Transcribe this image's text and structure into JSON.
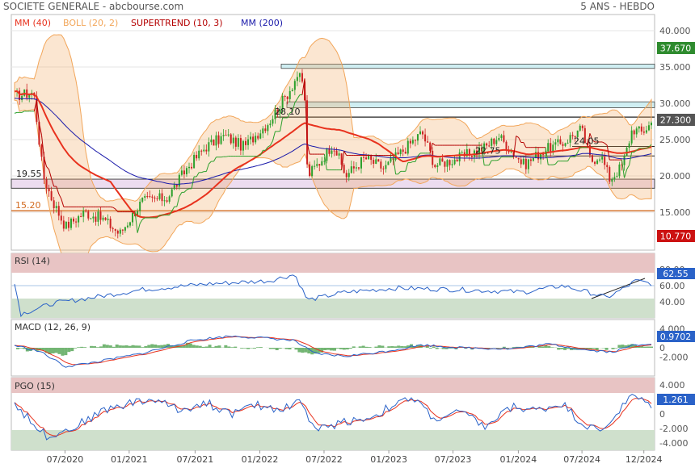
{
  "header": {
    "title": "SOCIETE GENERALE - abcbourse.com",
    "period": "5 ANS - HEBDO"
  },
  "colors": {
    "mm40": "#e8321e",
    "boll": "#f2a65a",
    "supertrend": "#b40000",
    "mm200": "#2222bb",
    "candle_up": "#2ca02c",
    "candle_down": "#cc2222",
    "rsi": "#2a62c8",
    "macd": "#2a62c8",
    "signal": "#e8321e",
    "pgo": "#2a62c8",
    "pgo_signal": "#e8321e"
  },
  "chart_data": [
    {
      "id": "price",
      "type": "candlestick",
      "legend": [
        {
          "label": "MM (40)",
          "color": "#e8321e"
        },
        {
          "label": "BOLL (20, 2)",
          "color": "#f2a65a"
        },
        {
          "label": "SUPERTREND (10, 3)",
          "color": "#b40000"
        },
        {
          "label": "MM (200)",
          "color": "#1a1aaa"
        }
      ],
      "ylim": [
        10,
        42
      ],
      "yticks": [
        "40.000",
        "35.000",
        "30.000",
        "25.000",
        "20.000",
        "15.000"
      ],
      "ytick_values": [
        40,
        35,
        30,
        25,
        20,
        15
      ],
      "last_value": "27.300",
      "high_badge": "37.670",
      "low_badge": "10.770",
      "annotations": [
        {
          "text": "19.55",
          "value": 19.55
        },
        {
          "text": "15.20",
          "value": 15.2
        },
        {
          "text": "28.10",
          "value": 28.1
        },
        {
          "text": "22.75",
          "value": 22.75
        },
        {
          "text": "24.05",
          "value": 24.05
        }
      ],
      "pivots": [
        {
          "x": 0.0,
          "y": 31.0
        },
        {
          "x": 0.03,
          "y": 31.5
        },
        {
          "x": 0.045,
          "y": 20.0
        },
        {
          "x": 0.06,
          "y": 16.5
        },
        {
          "x": 0.08,
          "y": 13.0
        },
        {
          "x": 0.11,
          "y": 15.0
        },
        {
          "x": 0.14,
          "y": 14.0
        },
        {
          "x": 0.165,
          "y": 12.0
        },
        {
          "x": 0.2,
          "y": 16.5
        },
        {
          "x": 0.24,
          "y": 17.0
        },
        {
          "x": 0.27,
          "y": 21.0
        },
        {
          "x": 0.3,
          "y": 24.0
        },
        {
          "x": 0.33,
          "y": 25.5
        },
        {
          "x": 0.36,
          "y": 24.0
        },
        {
          "x": 0.4,
          "y": 27.5
        },
        {
          "x": 0.43,
          "y": 31.5
        },
        {
          "x": 0.445,
          "y": 34.0
        },
        {
          "x": 0.455,
          "y": 32.0
        },
        {
          "x": 0.46,
          "y": 20.0
        },
        {
          "x": 0.48,
          "y": 22.0
        },
        {
          "x": 0.5,
          "y": 24.5
        },
        {
          "x": 0.52,
          "y": 20.0
        },
        {
          "x": 0.55,
          "y": 22.5
        },
        {
          "x": 0.58,
          "y": 21.0
        },
        {
          "x": 0.61,
          "y": 23.5
        },
        {
          "x": 0.64,
          "y": 26.0
        },
        {
          "x": 0.66,
          "y": 21.5
        },
        {
          "x": 0.7,
          "y": 22.5
        },
        {
          "x": 0.74,
          "y": 24.0
        },
        {
          "x": 0.76,
          "y": 25.5
        },
        {
          "x": 0.8,
          "y": 21.5
        },
        {
          "x": 0.83,
          "y": 23.5
        },
        {
          "x": 0.86,
          "y": 24.5
        },
        {
          "x": 0.89,
          "y": 26.5
        },
        {
          "x": 0.905,
          "y": 22.0
        },
        {
          "x": 0.92,
          "y": 23.0
        },
        {
          "x": 0.935,
          "y": 19.5
        },
        {
          "x": 0.955,
          "y": 21.5
        },
        {
          "x": 0.97,
          "y": 26.5
        },
        {
          "x": 0.985,
          "y": 26.0
        },
        {
          "x": 1.0,
          "y": 27.3
        }
      ]
    },
    {
      "id": "rsi",
      "type": "line",
      "legend": [
        {
          "label": "RSI (14)",
          "color": "#2a62c8"
        }
      ],
      "ylim": [
        20,
        100
      ],
      "yticks": [
        "80.00",
        "60.00",
        "40.00"
      ],
      "ytick_values": [
        80,
        60,
        40
      ],
      "last_value": "62.55",
      "pivots": [
        {
          "x": 0.0,
          "y": 62
        },
        {
          "x": 0.01,
          "y": 25
        },
        {
          "x": 0.03,
          "y": 30
        },
        {
          "x": 0.06,
          "y": 38
        },
        {
          "x": 0.12,
          "y": 45
        },
        {
          "x": 0.2,
          "y": 55
        },
        {
          "x": 0.3,
          "y": 62
        },
        {
          "x": 0.4,
          "y": 66
        },
        {
          "x": 0.44,
          "y": 74
        },
        {
          "x": 0.46,
          "y": 42
        },
        {
          "x": 0.52,
          "y": 52
        },
        {
          "x": 0.6,
          "y": 57
        },
        {
          "x": 0.7,
          "y": 55
        },
        {
          "x": 0.8,
          "y": 52
        },
        {
          "x": 0.86,
          "y": 60
        },
        {
          "x": 0.9,
          "y": 52
        },
        {
          "x": 0.93,
          "y": 45
        },
        {
          "x": 0.96,
          "y": 58
        },
        {
          "x": 0.975,
          "y": 66
        },
        {
          "x": 1.0,
          "y": 62.55
        }
      ]
    },
    {
      "id": "macd",
      "type": "line",
      "legend": [
        {
          "label": "MACD (12, 26, 9)",
          "color": "#2a62c8"
        }
      ],
      "ylim": [
        -6,
        6
      ],
      "yticks": [
        "4.000",
        "2.000",
        "0",
        "-2.000"
      ],
      "ytick_values": [
        4,
        2,
        0,
        -2
      ],
      "last_value": "0.9702",
      "pivots": [
        {
          "x": 0.0,
          "y": 0.5
        },
        {
          "x": 0.04,
          "y": -0.8
        },
        {
          "x": 0.08,
          "y": -4.0
        },
        {
          "x": 0.12,
          "y": -3.2
        },
        {
          "x": 0.2,
          "y": -1.2
        },
        {
          "x": 0.28,
          "y": 1.6
        },
        {
          "x": 0.34,
          "y": 2.5
        },
        {
          "x": 0.4,
          "y": 2.0
        },
        {
          "x": 0.44,
          "y": 1.5
        },
        {
          "x": 0.47,
          "y": -1.2
        },
        {
          "x": 0.52,
          "y": -1.8
        },
        {
          "x": 0.58,
          "y": -0.8
        },
        {
          "x": 0.64,
          "y": 0.6
        },
        {
          "x": 0.7,
          "y": 0.0
        },
        {
          "x": 0.78,
          "y": -0.2
        },
        {
          "x": 0.84,
          "y": 0.8
        },
        {
          "x": 0.9,
          "y": -0.5
        },
        {
          "x": 0.94,
          "y": -0.9
        },
        {
          "x": 0.97,
          "y": 0.5
        },
        {
          "x": 1.0,
          "y": 0.97
        }
      ]
    },
    {
      "id": "pgo",
      "type": "line",
      "legend": [
        {
          "label": "PGO (15)",
          "color": "#2a62c8"
        }
      ],
      "ylim": [
        -5,
        5
      ],
      "yticks": [
        "4.000",
        "2.000",
        "0",
        "-2.000",
        "-4.000"
      ],
      "ytick_values": [
        4,
        2,
        0,
        -2,
        -4
      ],
      "last_value": "1.261",
      "pivots": [
        {
          "x": 0.0,
          "y": 1.5
        },
        {
          "x": 0.02,
          "y": -0.5
        },
        {
          "x": 0.05,
          "y": -3.0
        },
        {
          "x": 0.09,
          "y": -2.0
        },
        {
          "x": 0.14,
          "y": 0.5
        },
        {
          "x": 0.18,
          "y": 1.5
        },
        {
          "x": 0.22,
          "y": 2.0
        },
        {
          "x": 0.26,
          "y": 0.5
        },
        {
          "x": 0.3,
          "y": 1.6
        },
        {
          "x": 0.34,
          "y": 0.0
        },
        {
          "x": 0.38,
          "y": 1.2
        },
        {
          "x": 0.42,
          "y": 0.6
        },
        {
          "x": 0.45,
          "y": 2.0
        },
        {
          "x": 0.47,
          "y": -2.3
        },
        {
          "x": 0.52,
          "y": -1.0
        },
        {
          "x": 0.56,
          "y": -0.5
        },
        {
          "x": 0.6,
          "y": 1.5
        },
        {
          "x": 0.63,
          "y": 2.0
        },
        {
          "x": 0.66,
          "y": -0.8
        },
        {
          "x": 0.7,
          "y": 0.3
        },
        {
          "x": 0.74,
          "y": -1.8
        },
        {
          "x": 0.78,
          "y": 1.0
        },
        {
          "x": 0.82,
          "y": 0.5
        },
        {
          "x": 0.86,
          "y": 1.5
        },
        {
          "x": 0.89,
          "y": -1.2
        },
        {
          "x": 0.92,
          "y": -2.5
        },
        {
          "x": 0.95,
          "y": 0.5
        },
        {
          "x": 0.97,
          "y": 2.6
        },
        {
          "x": 0.985,
          "y": 1.8
        },
        {
          "x": 1.0,
          "y": 1.261
        }
      ]
    }
  ],
  "x_axis": {
    "labels": [
      {
        "text": "07/2020",
        "pos": 0.088
      },
      {
        "text": "01/2021",
        "pos": 0.2
      },
      {
        "text": "07/2021",
        "pos": 0.315
      },
      {
        "text": "01/2022",
        "pos": 0.428
      },
      {
        "text": "07/2022",
        "pos": 0.54
      },
      {
        "text": "01/2023",
        "pos": 0.653
      },
      {
        "text": "07/2023",
        "pos": 0.765
      },
      {
        "text": "01/2024",
        "pos": 0.879
      },
      {
        "text": "07/2024",
        "pos": 0.99
      },
      {
        "text": "12/2024",
        "pos": 1.098
      }
    ]
  }
}
